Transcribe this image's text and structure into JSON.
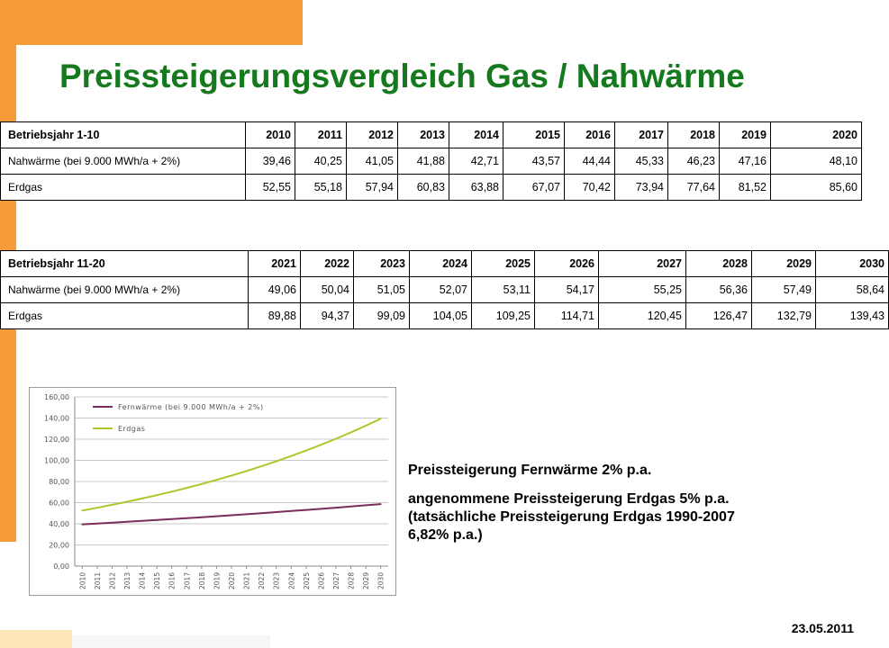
{
  "title": "Preissteigerungsvergleich Gas / Nahwärme",
  "table1": {
    "header": [
      "Betriebsjahr 1-10",
      "2010",
      "2011",
      "2012",
      "2013",
      "2014",
      "2015",
      "2016",
      "2017",
      "2018",
      "2019",
      "2020"
    ],
    "rows": [
      [
        "Nahwärme (bei 9.000 MWh/a + 2%)",
        "39,46",
        "40,25",
        "41,05",
        "41,88",
        "42,71",
        "43,57",
        "44,44",
        "45,33",
        "46,23",
        "47,16",
        "48,10"
      ],
      [
        "Erdgas",
        "52,55",
        "55,18",
        "57,94",
        "60,83",
        "63,88",
        "67,07",
        "70,42",
        "73,94",
        "77,64",
        "81,52",
        "85,60"
      ]
    ]
  },
  "table2": {
    "header": [
      "Betriebsjahr 11-20",
      "2021",
      "2022",
      "2023",
      "2024",
      "2025",
      "2026",
      "2027",
      "2028",
      "2029",
      "2030"
    ],
    "rows": [
      [
        "Nahwärme (bei 9.000 MWh/a + 2%)",
        "49,06",
        "50,04",
        "51,05",
        "52,07",
        "53,11",
        "54,17",
        "55,25",
        "56,36",
        "57,49",
        "58,64"
      ],
      [
        "Erdgas",
        "89,88",
        "94,37",
        "99,09",
        "104,05",
        "109,25",
        "114,71",
        "120,45",
        "126,47",
        "132,79",
        "139,43"
      ]
    ]
  },
  "chart_data": {
    "type": "line",
    "x": [
      "2010",
      "2011",
      "2012",
      "2013",
      "2014",
      "2015",
      "2016",
      "2017",
      "2018",
      "2019",
      "2020",
      "2021",
      "2022",
      "2023",
      "2024",
      "2025",
      "2026",
      "2027",
      "2028",
      "2029",
      "2030"
    ],
    "ylim": [
      0,
      160
    ],
    "yticks": [
      "0,00",
      "20,00",
      "40,00",
      "60,00",
      "80,00",
      "100,00",
      "120,00",
      "140,00",
      "160,00"
    ],
    "grid": true,
    "legend_position": "top-left",
    "series": [
      {
        "name": "Fernwärme (bei 9.000 MWh/a + 2%)",
        "color": "#7b2d5e",
        "values": [
          39.46,
          40.25,
          41.05,
          41.88,
          42.71,
          43.57,
          44.44,
          45.33,
          46.23,
          47.16,
          48.1,
          49.06,
          50.04,
          51.05,
          52.07,
          53.11,
          54.17,
          55.25,
          56.36,
          57.49,
          58.64
        ]
      },
      {
        "name": "Erdgas",
        "color": "#a9c92a",
        "values": [
          52.55,
          55.18,
          57.94,
          60.83,
          63.88,
          67.07,
          70.42,
          73.94,
          77.64,
          81.52,
          85.6,
          89.88,
          94.37,
          99.09,
          104.05,
          109.25,
          114.71,
          120.45,
          126.47,
          132.79,
          139.43
        ]
      }
    ]
  },
  "notes": {
    "line1": "Preissteigerung Fernwärme 2% p.a.",
    "line2": "angenommene Preissteigerung Erdgas 5% p.a.\n(tatsächliche Preissteigerung Erdgas 1990-2007\n6,82% p.a.)"
  },
  "date": "23.05.2011",
  "colors": {
    "title": "#157a1d",
    "accent_orange": "#f79b3a"
  }
}
